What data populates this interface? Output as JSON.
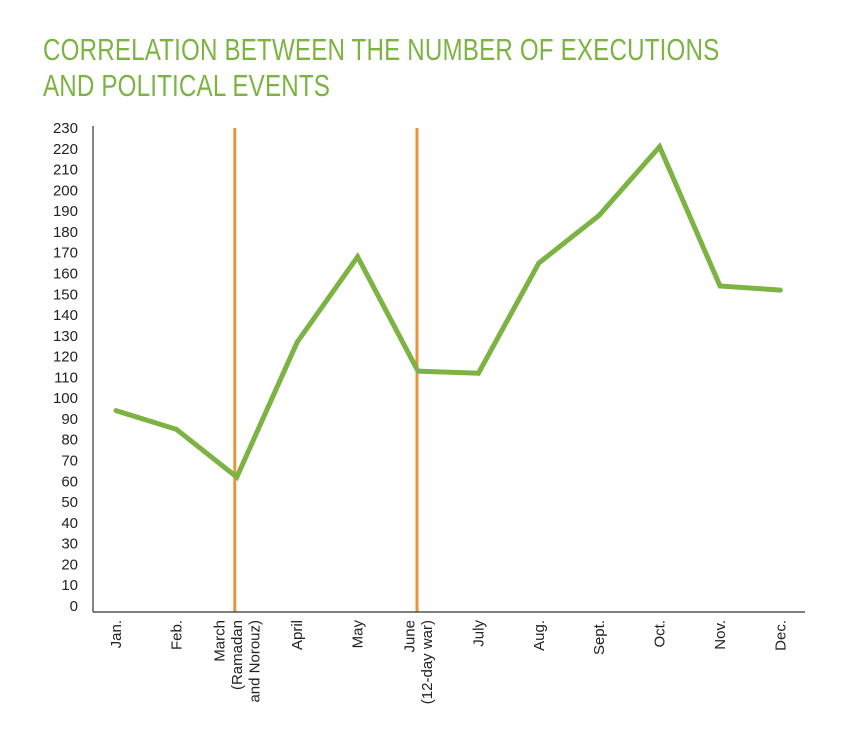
{
  "title": {
    "line1": "CORRELATION BETWEEN THE NUMBER OF EXECUTIONS",
    "line2": "AND POLITICAL EVENTS"
  },
  "colors": {
    "title": "#7cb342",
    "series": "#7cb342",
    "event_line": "#e8963a",
    "axis": "#333333"
  },
  "chart_data": {
    "type": "line",
    "title": "CORRELATION BETWEEN THE NUMBER OF EXECUTIONS AND POLITICAL EVENTS",
    "xlabel": "",
    "ylabel": "",
    "ylim": [
      0,
      230
    ],
    "ytick_step": 10,
    "grid": false,
    "categories": [
      [
        "Jan."
      ],
      [
        "Feb."
      ],
      [
        "March",
        "(Ramadan",
        "and Norouz)"
      ],
      [
        "April"
      ],
      [
        "May"
      ],
      [
        "June",
        "(12-day war)"
      ],
      [
        "July"
      ],
      [
        "Aug."
      ],
      [
        "Sept."
      ],
      [
        "Oct."
      ],
      [
        "Nov."
      ],
      [
        "Dec."
      ]
    ],
    "series": [
      {
        "name": "Number of executions",
        "values": [
          94,
          85,
          62,
          127,
          168,
          113,
          112,
          165,
          188,
          221,
          154,
          152
        ]
      }
    ],
    "event_lines": [
      {
        "category_index": 2
      },
      {
        "category_index": 5
      }
    ]
  }
}
